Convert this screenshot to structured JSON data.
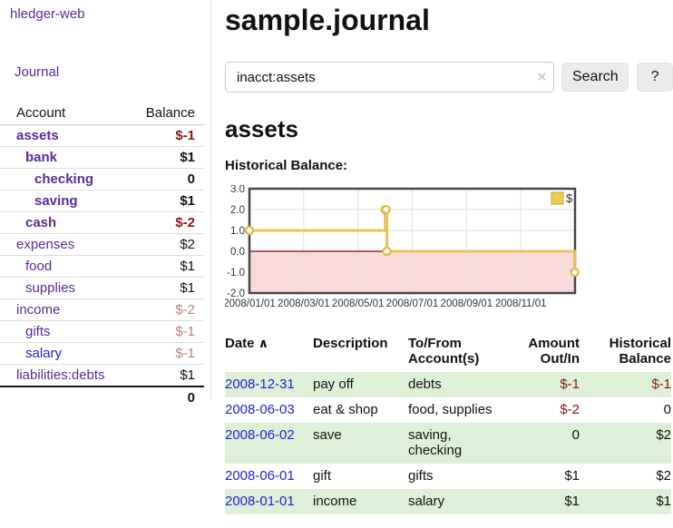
{
  "colors": {
    "link_purple": "#5b2a9b",
    "link_blue": "#2222d5",
    "negative_strong": "#8b1717",
    "negative_muted": "#c07e7e",
    "row_stripe_green": "#dff0d8",
    "chart_line_gold": "#e7c45c",
    "chart_negative_fill": "#f9dada",
    "chart_zero_line": "#8b0000"
  },
  "sidebar": {
    "app_title": "hledger-web",
    "journal_link": "Journal",
    "accounts": {
      "headers": [
        "Account",
        "Balance"
      ],
      "rows": [
        {
          "account": "assets",
          "balance": "$-1",
          "indent": 0,
          "bold": true,
          "name_color": "purple",
          "tone": "neg-strong"
        },
        {
          "account": "bank",
          "balance": "$1",
          "indent": 1,
          "bold": true,
          "name_color": "purple",
          "tone": "plain"
        },
        {
          "account": "checking",
          "balance": "0",
          "indent": 2,
          "bold": true,
          "name_color": "purple",
          "tone": "plain"
        },
        {
          "account": "saving",
          "balance": "$1",
          "indent": 2,
          "bold": true,
          "name_color": "purple",
          "tone": "plain"
        },
        {
          "account": "cash",
          "balance": "$-2",
          "indent": 1,
          "bold": true,
          "name_color": "purple",
          "tone": "neg-strong"
        },
        {
          "account": "expenses",
          "balance": "$2",
          "indent": 0,
          "bold": false,
          "name_color": "purple",
          "tone": "plain"
        },
        {
          "account": "food",
          "balance": "$1",
          "indent": 1,
          "bold": false,
          "name_color": "purple",
          "tone": "plain"
        },
        {
          "account": "supplies",
          "balance": "$1",
          "indent": 1,
          "bold": false,
          "name_color": "purple",
          "tone": "plain"
        },
        {
          "account": "income",
          "balance": "$-2",
          "indent": 0,
          "bold": false,
          "name_color": "purple",
          "tone": "neg-muted"
        },
        {
          "account": "gifts",
          "balance": "$-1",
          "indent": 1,
          "bold": false,
          "name_color": "purple",
          "tone": "neg-muted"
        },
        {
          "account": "salary",
          "balance": "$-1",
          "indent": 1,
          "bold": false,
          "name_color": "blue",
          "tone": "neg-muted"
        },
        {
          "account": "liabilities:debts",
          "balance": "$1",
          "indent": 0,
          "bold": false,
          "name_color": "purple",
          "tone": "plain",
          "last": true
        }
      ],
      "total": "0"
    }
  },
  "main": {
    "title": "sample.journal",
    "search": {
      "value": "inacct:assets",
      "clear_icon": "×",
      "search_button": "Search",
      "help_button": "?"
    },
    "account_heading": "assets",
    "chart_label": "Historical Balance:",
    "register": {
      "headers": [
        "Date",
        "Description",
        "To/From Account(s)",
        "Amount Out/In",
        "Historical Balance"
      ],
      "sort_icon": "∧",
      "rows": [
        {
          "date": "2008-12-31",
          "description": "pay off",
          "accounts": "debts",
          "amount": "$-1",
          "amount_tone": "neg-strong",
          "balance": "$-1",
          "balance_tone": "neg-strong"
        },
        {
          "date": "2008-06-03",
          "description": "eat & shop",
          "accounts": "food, supplies",
          "amount": "$-2",
          "amount_tone": "neg-strong",
          "balance": "0",
          "balance_tone": "plain"
        },
        {
          "date": "2008-06-02",
          "description": "save",
          "accounts": "saving, checking",
          "amount": "0",
          "amount_tone": "plain",
          "balance": "$2",
          "balance_tone": "plain"
        },
        {
          "date": "2008-06-01",
          "description": "gift",
          "accounts": "gifts",
          "amount": "$1",
          "amount_tone": "plain",
          "balance": "$2",
          "balance_tone": "plain"
        },
        {
          "date": "2008-01-01",
          "description": "income",
          "accounts": "salary",
          "amount": "$1",
          "amount_tone": "plain",
          "balance": "$1",
          "balance_tone": "plain"
        }
      ]
    }
  },
  "chart_data": {
    "type": "line",
    "step": true,
    "title": "Historical Balance:",
    "legend": [
      {
        "label": "$",
        "color": "#eccb4f"
      }
    ],
    "ylim": [
      -2,
      3
    ],
    "yticks": [
      "3.0",
      "2.0",
      "1.0",
      "0.0",
      "-1.0",
      "-2.0"
    ],
    "ytick_values": [
      3,
      2,
      1,
      0,
      -1,
      -2
    ],
    "xticks": [
      "2008/01/01",
      "2008/03/01",
      "2008/05/01",
      "2008/07/01",
      "2008/09/01",
      "2008/11/01"
    ],
    "xlim_dates": [
      "2008-01-01",
      "2009-01-01"
    ],
    "series": [
      {
        "name": "$",
        "points": [
          [
            "2008-01-01",
            1
          ],
          [
            "2008-06-01",
            2
          ],
          [
            "2008-06-02",
            2
          ],
          [
            "2008-06-03",
            0
          ],
          [
            "2008-12-31",
            -1
          ]
        ]
      }
    ],
    "negative_region_shaded": true,
    "grid": true,
    "legend_position": "top-right"
  }
}
